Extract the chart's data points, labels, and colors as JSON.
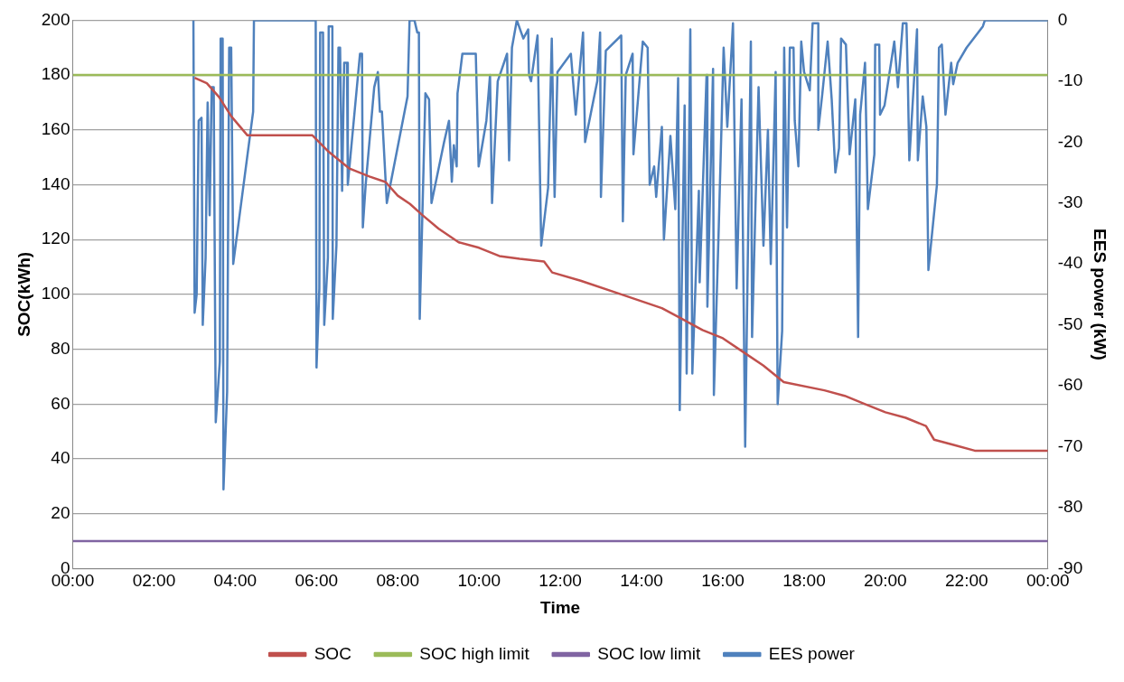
{
  "chart_data": {
    "type": "line",
    "xlabel": "Time",
    "ylabel": "SOC(kWh)",
    "y2label": "EES power (kW)",
    "xlim": [
      0,
      24
    ],
    "xticks": [
      {
        "value": 0,
        "label": "00:00"
      },
      {
        "value": 2,
        "label": "02:00"
      },
      {
        "value": 4,
        "label": "04:00"
      },
      {
        "value": 6,
        "label": "06:00"
      },
      {
        "value": 8,
        "label": "08:00"
      },
      {
        "value": 10,
        "label": "10:00"
      },
      {
        "value": 12,
        "label": "12:00"
      },
      {
        "value": 14,
        "label": "14:00"
      },
      {
        "value": 16,
        "label": "16:00"
      },
      {
        "value": 18,
        "label": "18:00"
      },
      {
        "value": 20,
        "label": "20:00"
      },
      {
        "value": 22,
        "label": "22:00"
      },
      {
        "value": 24,
        "label": "00:00"
      }
    ],
    "ylim": [
      0,
      200
    ],
    "yticks": [
      0,
      20,
      40,
      60,
      80,
      100,
      120,
      140,
      160,
      180,
      200
    ],
    "y2lim": [
      -90,
      0
    ],
    "y2ticks": [
      -90,
      -80,
      -70,
      -60,
      -50,
      -40,
      -30,
      -20,
      -10,
      0
    ],
    "grid": "y",
    "legend": "bottom",
    "marker": "none",
    "line_style": "solid",
    "series": [
      {
        "name": "SOC",
        "color": "#c0504d",
        "x": [
          3.0,
          3.3,
          3.6,
          3.9,
          4.3,
          5.9,
          6.3,
          6.8,
          7.3,
          7.7,
          8.0,
          8.3,
          8.6,
          9.0,
          9.5,
          10.0,
          10.5,
          11.0,
          11.6,
          11.8,
          12.5,
          13.5,
          14.5,
          15.0,
          15.5,
          16.0,
          16.5,
          17.0,
          17.5,
          18.5,
          19.0,
          19.5,
          20.0,
          20.5,
          21.0,
          21.2,
          21.7,
          22.2,
          24
        ],
        "values": [
          179,
          177,
          172,
          165,
          158,
          158,
          152,
          146,
          143,
          141,
          136,
          133,
          129,
          124,
          119,
          117,
          114,
          113,
          112,
          108,
          105,
          100,
          95,
          91,
          87,
          84,
          79,
          74,
          68,
          65,
          63,
          60,
          57,
          55,
          52,
          47,
          45,
          43,
          43
        ]
      },
      {
        "name": "SOC high limit",
        "color": "#9bbb59",
        "x": [
          0,
          24
        ],
        "values": [
          180,
          180
        ]
      },
      {
        "name": "SOC low limit",
        "color": "#8064a2",
        "x": [
          0,
          24
        ],
        "values": [
          10,
          10
        ]
      },
      {
        "name": "EES power",
        "color": "#4f81bd",
        "axis": "y2",
        "x": [
          2.97,
          3.0,
          3.05,
          3.1,
          3.17,
          3.2,
          3.27,
          3.32,
          3.37,
          3.42,
          3.47,
          3.52,
          3.62,
          3.64,
          3.69,
          3.71,
          3.8,
          3.85,
          3.9,
          3.95,
          4.44,
          4.46,
          5.98,
          6.0,
          6.07,
          6.09,
          6.16,
          6.19,
          6.28,
          6.3,
          6.39,
          6.4,
          6.49,
          6.54,
          6.58,
          6.63,
          6.68,
          6.75,
          6.77,
          7.07,
          7.12,
          7.14,
          7.21,
          7.42,
          7.51,
          7.56,
          7.61,
          7.73,
          8.24,
          8.29,
          8.41,
          8.48,
          8.52,
          8.54,
          8.59,
          8.68,
          8.77,
          8.83,
          9.14,
          9.26,
          9.33,
          9.38,
          9.45,
          9.47,
          9.59,
          9.92,
          9.99,
          10.18,
          10.27,
          10.32,
          10.46,
          10.69,
          10.74,
          10.81,
          10.93,
          11.09,
          11.21,
          11.23,
          11.28,
          11.44,
          11.53,
          11.7,
          11.79,
          11.86,
          11.93,
          12.26,
          12.38,
          12.56,
          12.61,
          12.91,
          12.98,
          13.0,
          13.12,
          13.5,
          13.54,
          13.61,
          13.78,
          13.8,
          14.03,
          14.15,
          14.2,
          14.31,
          14.36,
          14.5,
          14.55,
          14.71,
          14.83,
          14.9,
          14.94,
          15.06,
          15.11,
          15.2,
          15.25,
          15.41,
          15.43,
          15.6,
          15.62,
          15.76,
          15.78,
          15.9,
          16.02,
          16.11,
          16.25,
          16.34,
          16.46,
          16.55,
          16.69,
          16.72,
          16.88,
          17.0,
          17.11,
          17.18,
          17.3,
          17.35,
          17.46,
          17.51,
          17.58,
          17.65,
          17.74,
          17.77,
          17.86,
          17.93,
          18.0,
          18.14,
          18.21,
          18.35,
          18.35,
          18.45,
          18.58,
          18.68,
          18.77,
          18.86,
          18.91,
          19.03,
          19.12,
          19.26,
          19.33,
          19.38,
          19.5,
          19.57,
          19.73,
          19.75,
          19.85,
          19.87,
          19.98,
          20.22,
          20.31,
          20.43,
          20.52,
          20.55,
          20.59,
          20.78,
          20.8,
          20.92,
          21.01,
          21.06,
          21.27,
          21.32,
          21.39,
          21.48,
          21.62,
          21.67,
          21.78,
          22.0,
          22.4,
          22.45,
          24
        ],
        "values": [
          0,
          -48,
          -45,
          -16.5,
          -16,
          -50,
          -39,
          -13.5,
          -32,
          -11,
          -11,
          -66,
          -56,
          -3,
          -3,
          -77,
          -61,
          -4.5,
          -4.5,
          -40,
          -15,
          0,
          0,
          -57,
          -44,
          -2,
          -2,
          -50,
          -39,
          -1,
          -1,
          -49,
          -37,
          -4.5,
          -4.5,
          -28,
          -7,
          -7,
          -27,
          -5.5,
          -5.5,
          -34,
          -27,
          -11,
          -8.5,
          -15,
          -15,
          -30,
          -12.5,
          0,
          0,
          -2,
          -2,
          -49,
          -36,
          -12,
          -13,
          -30,
          -20,
          -16.5,
          -26.5,
          -20.5,
          -24,
          -12,
          -5.5,
          -5.5,
          -24,
          -16.5,
          -9,
          -30,
          -10,
          -5.5,
          -23,
          -4.5,
          0,
          -3,
          -1.5,
          -9,
          -10,
          -2.5,
          -37,
          -27.5,
          -3,
          -29,
          -8.5,
          -5.5,
          -15.5,
          -2,
          -20,
          -10,
          -2,
          -29,
          -5,
          -2.5,
          -33,
          -9,
          -5.5,
          -22,
          -3.5,
          -4.5,
          -27,
          -24,
          -29,
          -17.5,
          -36,
          -19,
          -31,
          -9.5,
          -64,
          -14,
          -58,
          -1.5,
          -58,
          -28,
          -43,
          -9,
          -47,
          -8,
          -61.5,
          -34,
          -4.5,
          -17.5,
          -0.5,
          -44,
          -13,
          -70,
          -3.5,
          -52,
          -11,
          -37,
          -18,
          -40,
          -8.5,
          -63,
          -51,
          -4.5,
          -34,
          -4.5,
          -4.5,
          -16.5,
          -24,
          -3.5,
          -8.5,
          -11.5,
          -0.5,
          -0.5,
          -18,
          -12,
          -3.5,
          -13,
          -25,
          -21,
          -3,
          -4,
          -22,
          -13,
          -52,
          -15.5,
          -7,
          -31,
          -22,
          -4,
          -4,
          -15.5,
          -14,
          -3.5,
          -11,
          -0.5,
          -0.5,
          -8.5,
          -23,
          -1.5,
          -23,
          -12.5,
          -17.5,
          -41,
          -27,
          -4.5,
          -4,
          -15.5,
          -7,
          -10.5,
          -7,
          -4.5,
          -1,
          0,
          0
        ]
      }
    ]
  }
}
